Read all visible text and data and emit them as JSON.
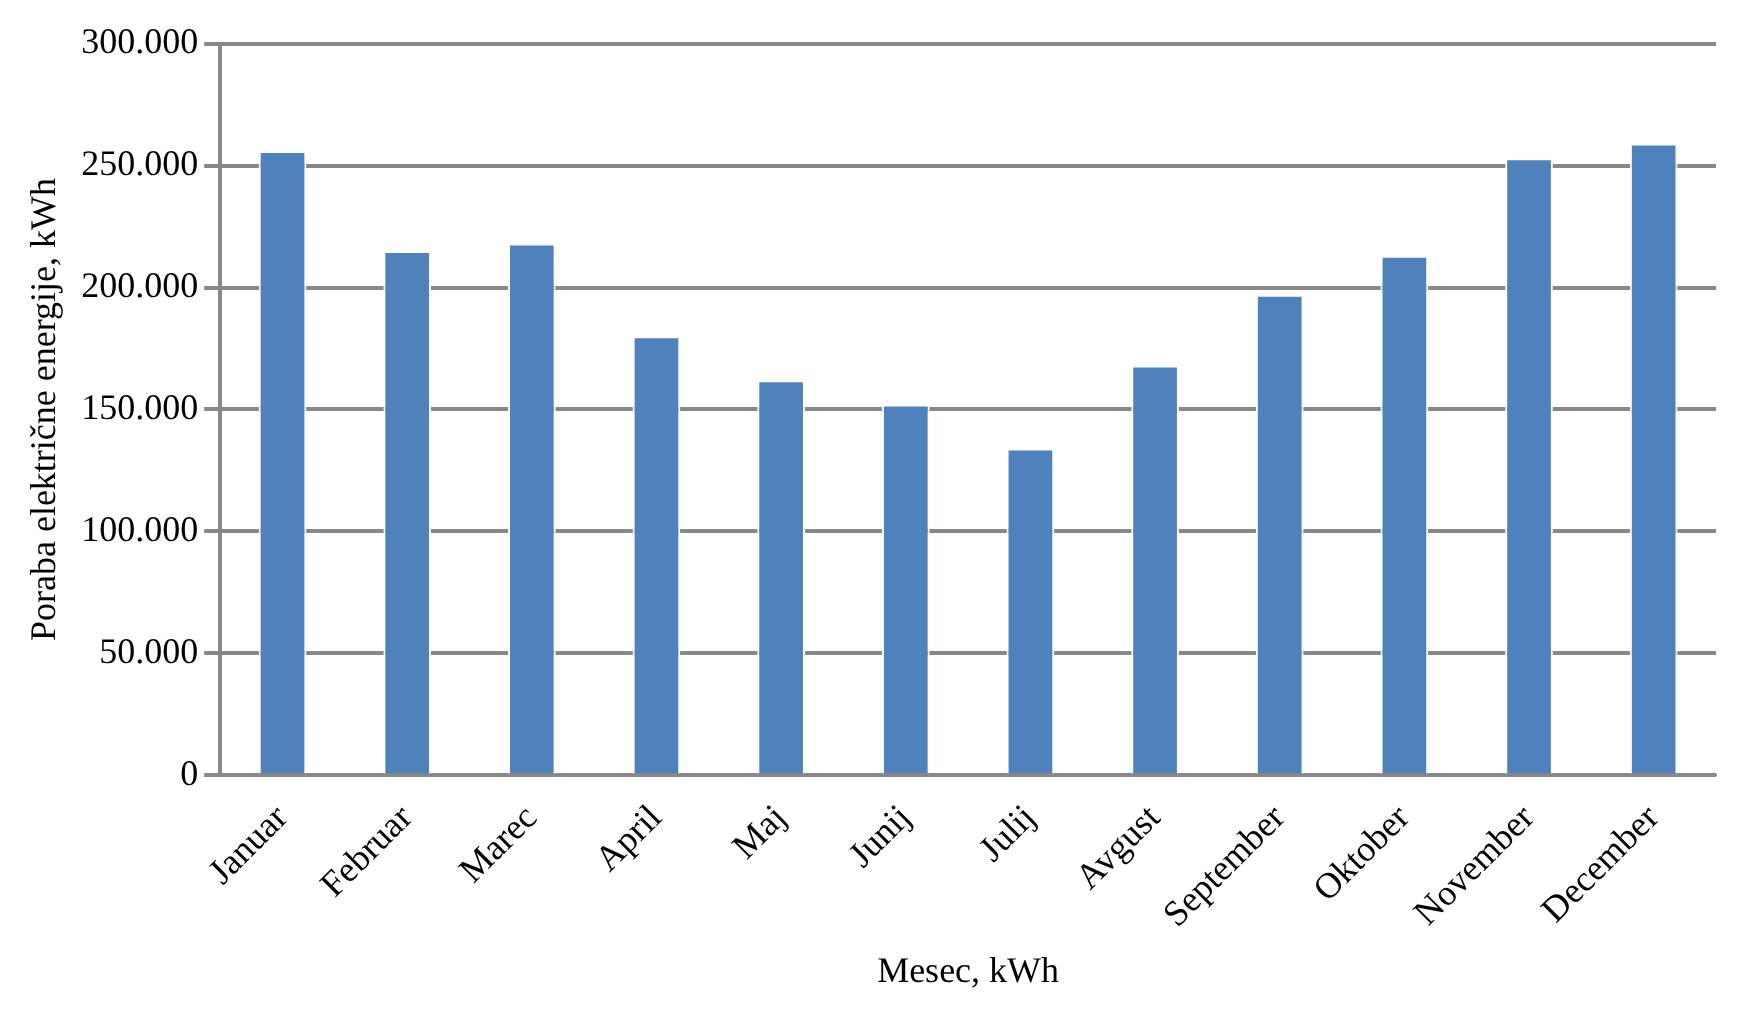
{
  "chart_data": {
    "type": "bar",
    "xlabel": "Mesec, kWh",
    "ylabel": "Poraba električne energije, kWh",
    "categories": [
      "Januar",
      "Februar",
      "Marec",
      "April",
      "Maj",
      "Junij",
      "Julij",
      "Avgust",
      "September",
      "Oktober",
      "November",
      "December"
    ],
    "values": [
      256000,
      215000,
      218000,
      180000,
      162000,
      152000,
      134000,
      168000,
      197000,
      213000,
      253000,
      259000
    ],
    "color": "#4f81bd",
    "ylim": [
      0,
      300000
    ],
    "yticks": [
      {
        "value": 0,
        "label": "0"
      },
      {
        "value": 50000,
        "label": "50.000"
      },
      {
        "value": 100000,
        "label": "100.000"
      },
      {
        "value": 150000,
        "label": "150.000"
      },
      {
        "value": 200000,
        "label": "200.000"
      },
      {
        "value": 250000,
        "label": "250.000"
      },
      {
        "value": 300000,
        "label": "300.000"
      }
    ],
    "grid": "y",
    "legend": false
  }
}
